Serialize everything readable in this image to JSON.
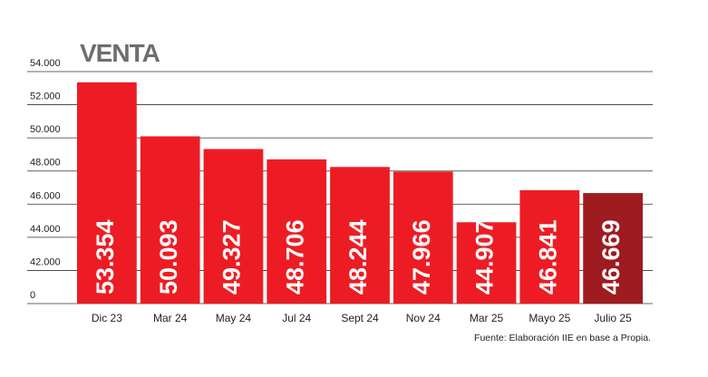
{
  "chart_data": {
    "type": "bar",
    "title": "VENTA",
    "source": "Fuente: Elaboración IIE en base a Propia.",
    "categories": [
      "Dic 23",
      "Mar 24",
      "May 24",
      "Jul 24",
      "Sept 24",
      "Nov 24",
      "Mar 25",
      "Mayo 25",
      "Julio 25"
    ],
    "values": [
      53354,
      50093,
      49327,
      48706,
      48244,
      47966,
      44907,
      46841,
      46669
    ],
    "value_labels": [
      "53.354",
      "50.093",
      "49.327",
      "48.706",
      "48.244",
      "47.966",
      "44.907",
      "46.841",
      "46.669"
    ],
    "colors": [
      "#ed1c24",
      "#ed1c24",
      "#ed1c24",
      "#ed1c24",
      "#ed1c24",
      "#ed1c24",
      "#ed1c24",
      "#ed1c24",
      "#9e1b20"
    ],
    "ylim": [
      0,
      54000
    ],
    "yticks": [
      {
        "value": 54000,
        "label": "54.000"
      },
      {
        "value": 52000,
        "label": "52.000"
      },
      {
        "value": 50000,
        "label": "50.000"
      },
      {
        "value": 48000,
        "label": "48.000"
      },
      {
        "value": 46000,
        "label": "46.000"
      },
      {
        "value": 44000,
        "label": "44.000"
      },
      {
        "value": 42000,
        "label": "42.000"
      },
      0
    ],
    "axis_break": true,
    "grid": true
  }
}
